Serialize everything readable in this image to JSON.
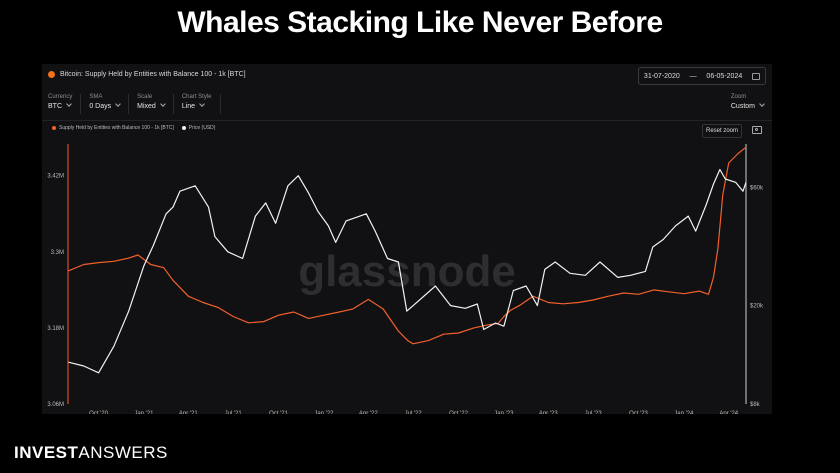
{
  "headline": "Whales Stacking Like Never Before",
  "panel": {
    "title": "Bitcoin: Supply Held by Entities with Balance 100 - 1k [BTC]",
    "date_from": "31-07-2020",
    "date_sep": "—",
    "date_to": "06-05-2024",
    "controls": [
      {
        "label": "Currency",
        "value": "BTC"
      },
      {
        "label": "SMA",
        "value": "0 Days"
      },
      {
        "label": "Scale",
        "value": "Mixed"
      },
      {
        "label": "Chart Style",
        "value": "Line"
      }
    ],
    "zoom": {
      "label": "Zoom",
      "value": "Custom"
    },
    "reset_label": "Reset zoom",
    "watermark": "glassnode"
  },
  "brand": {
    "part1": "INVEST",
    "part2": "ANSWERS"
  },
  "chart_data": {
    "type": "line",
    "title": "Bitcoin: Supply Held by Entities with Balance 100 - 1k [BTC]",
    "x_ticks": [
      "Oct '20",
      "Jan '21",
      "Apr '21",
      "Jul '21",
      "Oct '21",
      "Jan '22",
      "Apr '22",
      "Jul '22",
      "Oct '22",
      "Jan '23",
      "Apr '23",
      "Jul '23",
      "Oct '23",
      "Jan '24",
      "Apr '24"
    ],
    "y_left_ticks": [
      "3.42M",
      "3.3M",
      "3.18M",
      "3.06M"
    ],
    "y_left_range": [
      3060000,
      3470000
    ],
    "y_right_ticks": [
      "$60k",
      "$20k",
      "$8k"
    ],
    "y_right_scale": "log",
    "y_right_range": [
      8000,
      90000
    ],
    "xlim": [
      "2020-07-31",
      "2024-05-06"
    ],
    "grid": false,
    "legend_position": "top-left",
    "series": [
      {
        "name": "Supply Held by Entities with Balance 100 - 1k [BTC]",
        "axis": "left",
        "color": "#f2602b",
        "x": [
          "2020-08-01",
          "2020-09-01",
          "2020-10-01",
          "2020-11-01",
          "2020-12-01",
          "2020-12-20",
          "2021-01-15",
          "2021-02-10",
          "2021-03-01",
          "2021-04-01",
          "2021-05-01",
          "2021-06-01",
          "2021-07-01",
          "2021-08-01",
          "2021-09-01",
          "2021-10-01",
          "2021-11-01",
          "2021-12-01",
          "2022-01-01",
          "2022-02-01",
          "2022-03-01",
          "2022-04-01",
          "2022-05-01",
          "2022-06-01",
          "2022-06-20",
          "2022-07-01",
          "2022-08-01",
          "2022-09-01",
          "2022-10-01",
          "2022-11-01",
          "2022-12-01",
          "2022-12-20",
          "2023-01-01",
          "2023-01-15",
          "2023-02-01",
          "2023-03-01",
          "2023-04-01",
          "2023-05-01",
          "2023-06-01",
          "2023-07-01",
          "2023-08-01",
          "2023-09-01",
          "2023-10-01",
          "2023-11-01",
          "2023-12-01",
          "2024-01-01",
          "2024-02-01",
          "2024-02-20",
          "2024-03-01",
          "2024-03-10",
          "2024-03-20",
          "2024-04-01",
          "2024-04-20",
          "2024-05-06"
        ],
        "y": [
          3270000,
          3280000,
          3283000,
          3285000,
          3290000,
          3295000,
          3280000,
          3275000,
          3255000,
          3230000,
          3220000,
          3212000,
          3198000,
          3188000,
          3190000,
          3200000,
          3205000,
          3195000,
          3200000,
          3205000,
          3210000,
          3225000,
          3210000,
          3175000,
          3160000,
          3155000,
          3160000,
          3170000,
          3172000,
          3180000,
          3185000,
          3187000,
          3198000,
          3208000,
          3215000,
          3230000,
          3220000,
          3218000,
          3220000,
          3224000,
          3230000,
          3235000,
          3233000,
          3240000,
          3237000,
          3234000,
          3238000,
          3233000,
          3260000,
          3305000,
          3390000,
          3440000,
          3455000,
          3465000
        ]
      },
      {
        "name": "Price (USD)",
        "axis": "right",
        "color": "#f2f2f2",
        "x": [
          "2020-08-01",
          "2020-09-01",
          "2020-10-01",
          "2020-11-01",
          "2020-12-01",
          "2021-01-01",
          "2021-01-20",
          "2021-02-15",
          "2021-03-01",
          "2021-03-15",
          "2021-04-15",
          "2021-05-12",
          "2021-05-25",
          "2021-06-20",
          "2021-07-20",
          "2021-08-15",
          "2021-09-05",
          "2021-09-25",
          "2021-10-20",
          "2021-11-10",
          "2021-12-01",
          "2021-12-20",
          "2022-01-10",
          "2022-01-25",
          "2022-02-15",
          "2022-03-28",
          "2022-04-15",
          "2022-05-10",
          "2022-06-01",
          "2022-06-18",
          "2022-07-01",
          "2022-08-15",
          "2022-09-15",
          "2022-10-15",
          "2022-11-08",
          "2022-11-21",
          "2022-12-15",
          "2023-01-01",
          "2023-01-20",
          "2023-02-15",
          "2023-03-10",
          "2023-03-25",
          "2023-04-15",
          "2023-05-15",
          "2023-06-15",
          "2023-07-15",
          "2023-08-20",
          "2023-09-15",
          "2023-10-15",
          "2023-10-30",
          "2023-11-20",
          "2023-12-15",
          "2024-01-10",
          "2024-01-25",
          "2024-02-15",
          "2024-03-01",
          "2024-03-14",
          "2024-03-25",
          "2024-04-15",
          "2024-04-30",
          "2024-05-06"
        ],
        "y": [
          11800,
          11400,
          10700,
          13700,
          19000,
          29000,
          35000,
          47000,
          50000,
          58000,
          61000,
          50000,
          38000,
          33000,
          31000,
          46000,
          52000,
          43000,
          61000,
          67000,
          57000,
          48000,
          42000,
          36000,
          44000,
          47000,
          40000,
          31000,
          30000,
          19000,
          20000,
          24000,
          20000,
          19500,
          20300,
          16000,
          17000,
          16500,
          23000,
          24000,
          20000,
          28000,
          30000,
          27000,
          26500,
          30000,
          26000,
          26500,
          27500,
          34500,
          37000,
          42000,
          46000,
          40000,
          51000,
          62000,
          71000,
          65000,
          63000,
          58000,
          63000
        ]
      }
    ]
  }
}
